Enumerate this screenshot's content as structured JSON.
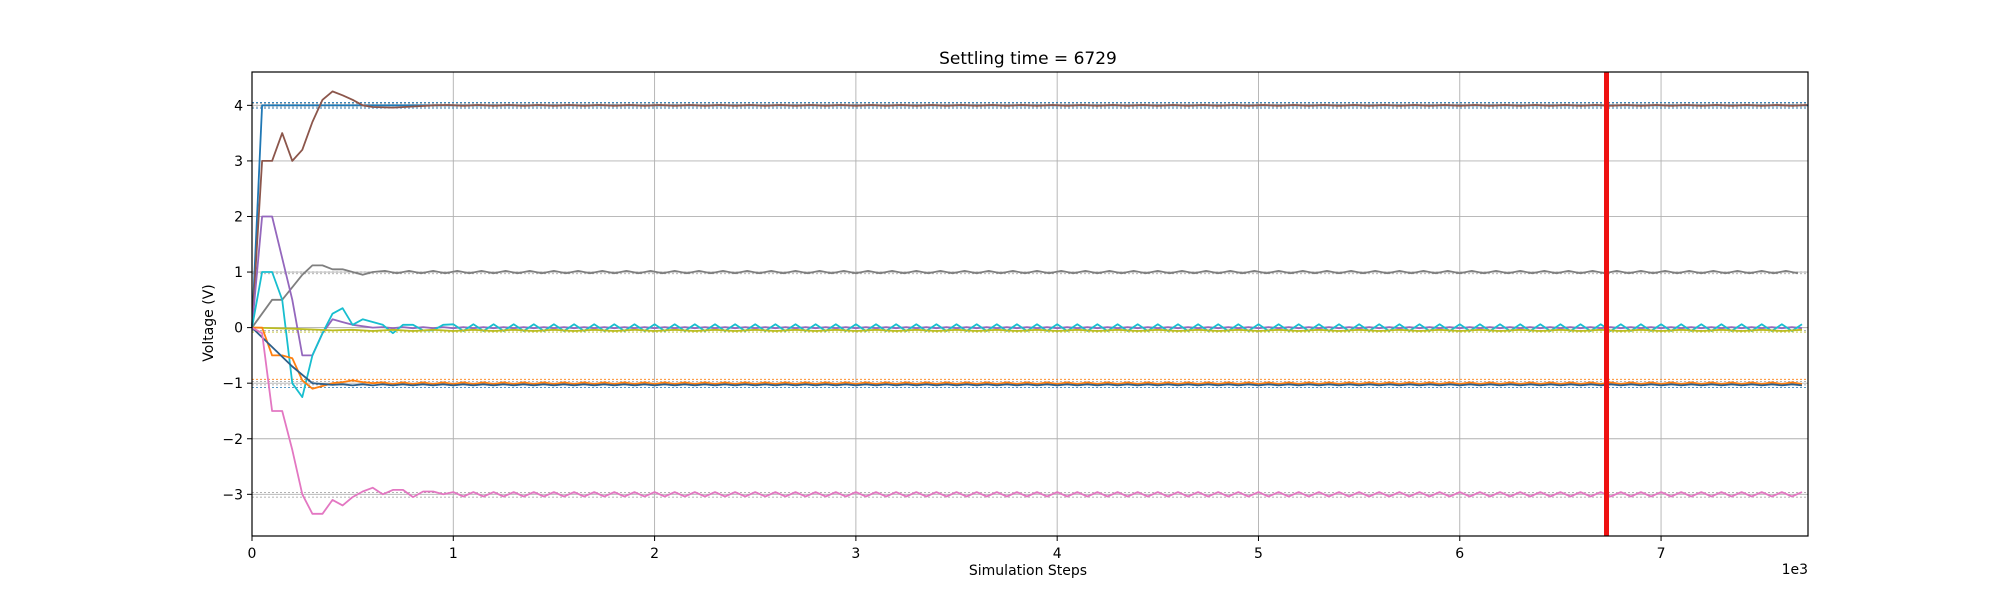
{
  "chart_data": {
    "type": "line",
    "title": "Settling time = 6729",
    "xlabel": "Simulation Steps",
    "ylabel": "Voltage (V)",
    "x_offset_label": "1e3",
    "xlim": [
      0,
      7.73
    ],
    "ylim": [
      -3.75,
      4.6
    ],
    "grid": true,
    "x_ticks": [
      0,
      1,
      2,
      3,
      4,
      5,
      6,
      7
    ],
    "y_ticks": [
      -3,
      -2,
      -1,
      0,
      1,
      2,
      3,
      4
    ],
    "x_tick_labels": [
      "0",
      "1",
      "2",
      "3",
      "4",
      "5",
      "6",
      "7"
    ],
    "y_tick_labels": [
      "−3",
      "−2",
      "−1",
      "0",
      "1",
      "2",
      "3",
      "4"
    ],
    "settling_line": {
      "x": 6.729,
      "color": "#ee1111"
    },
    "reference_lines": [
      {
        "y": 4.05,
        "color": "#1f77b4"
      },
      {
        "y": 3.95,
        "color": "#1f77b4"
      },
      {
        "y": 4.03,
        "color": "#999999"
      },
      {
        "y": 3.97,
        "color": "#999999"
      },
      {
        "y": 1.0,
        "color": "#999999"
      },
      {
        "y": 0.97,
        "color": "#999999"
      },
      {
        "y": -0.05,
        "color": "#999999"
      },
      {
        "y": -0.08,
        "color": "#bcbd22"
      },
      {
        "y": -0.97,
        "color": "#999999"
      },
      {
        "y": -1.03,
        "color": "#999999"
      },
      {
        "y": -1.08,
        "color": "#1f77b4"
      },
      {
        "y": -0.93,
        "color": "#ff7f0e"
      },
      {
        "y": -2.97,
        "color": "#999999"
      },
      {
        "y": -3.05,
        "color": "#999999"
      }
    ],
    "series": [
      {
        "color": "#1f77b4",
        "final": 4.0,
        "amp": 0.005,
        "period": 0.2,
        "points": [
          [
            0,
            0
          ],
          [
            0.05,
            4.0
          ],
          [
            7.73,
            4.0
          ]
        ]
      },
      {
        "color": "#8c564b",
        "final": 4.0,
        "amp": 0.006,
        "period": 0.15,
        "points": [
          [
            0,
            0
          ],
          [
            0.05,
            3.0
          ],
          [
            0.1,
            3.0
          ],
          [
            0.15,
            3.5
          ],
          [
            0.2,
            3.0
          ],
          [
            0.25,
            3.2
          ],
          [
            0.3,
            3.7
          ],
          [
            0.35,
            4.1
          ],
          [
            0.4,
            4.25
          ],
          [
            0.45,
            4.18
          ],
          [
            0.5,
            4.1
          ],
          [
            0.55,
            4.0
          ],
          [
            0.6,
            3.97
          ],
          [
            0.7,
            3.96
          ],
          [
            0.8,
            3.98
          ],
          [
            0.9,
            4.0
          ]
        ]
      },
      {
        "color": "#7f7f7f",
        "final": 1.0,
        "amp": 0.02,
        "period": 0.12,
        "points": [
          [
            0,
            0
          ],
          [
            0.1,
            0.5
          ],
          [
            0.15,
            0.5
          ],
          [
            0.25,
            0.95
          ],
          [
            0.3,
            1.12
          ],
          [
            0.35,
            1.12
          ],
          [
            0.4,
            1.05
          ],
          [
            0.45,
            1.05
          ],
          [
            0.5,
            1.0
          ],
          [
            0.55,
            0.95
          ],
          [
            0.6,
            1.0
          ]
        ]
      },
      {
        "color": "#9467bd",
        "final": 0.0,
        "amp": 0.01,
        "period": 0.1,
        "points": [
          [
            0,
            0
          ],
          [
            0.05,
            2.0
          ],
          [
            0.1,
            2.0
          ],
          [
            0.2,
            0.5
          ],
          [
            0.25,
            -0.5
          ],
          [
            0.3,
            -0.5
          ],
          [
            0.35,
            -0.1
          ],
          [
            0.4,
            0.15
          ],
          [
            0.45,
            0.1
          ],
          [
            0.5,
            0.05
          ],
          [
            0.6,
            0.0
          ]
        ]
      },
      {
        "color": "#17becf",
        "final": 0.0,
        "amp": 0.06,
        "period": 0.1,
        "points": [
          [
            0,
            0
          ],
          [
            0.05,
            1.0
          ],
          [
            0.1,
            1.0
          ],
          [
            0.15,
            0.5
          ],
          [
            0.2,
            -1.0
          ],
          [
            0.25,
            -1.25
          ],
          [
            0.3,
            -0.5
          ],
          [
            0.35,
            -0.1
          ],
          [
            0.4,
            0.25
          ],
          [
            0.45,
            0.35
          ],
          [
            0.5,
            0.05
          ],
          [
            0.55,
            0.15
          ],
          [
            0.65,
            0.05
          ],
          [
            0.7,
            -0.1
          ],
          [
            0.75,
            0.05
          ],
          [
            0.8,
            0.05
          ],
          [
            0.85,
            -0.05
          ],
          [
            0.9,
            -0.05
          ],
          [
            0.95,
            0.05
          ]
        ]
      },
      {
        "color": "#bcbd22",
        "final": -0.05,
        "amp": 0.01,
        "period": 0.2,
        "points": [
          [
            0,
            0
          ],
          [
            0.2,
            -0.02
          ],
          [
            0.4,
            -0.05
          ]
        ]
      },
      {
        "color": "#ff7f0e",
        "final": -1.0,
        "amp": 0.015,
        "period": 0.1,
        "points": [
          [
            0,
            0
          ],
          [
            0.05,
            0.0
          ],
          [
            0.1,
            -0.5
          ],
          [
            0.15,
            -0.5
          ],
          [
            0.2,
            -0.55
          ],
          [
            0.25,
            -0.95
          ],
          [
            0.3,
            -1.1
          ],
          [
            0.35,
            -1.05
          ],
          [
            0.4,
            -1.0
          ],
          [
            0.45,
            -0.98
          ],
          [
            0.5,
            -0.95
          ],
          [
            0.55,
            -0.98
          ],
          [
            0.6,
            -1.0
          ]
        ]
      },
      {
        "color": "#2e5f8a",
        "final": -1.03,
        "amp": 0.01,
        "period": 0.1,
        "points": [
          [
            0,
            0
          ],
          [
            0.2,
            -0.7
          ],
          [
            0.3,
            -1.0
          ],
          [
            0.4,
            -1.03
          ]
        ]
      },
      {
        "color": "#e377c2",
        "final": -3.0,
        "amp": 0.04,
        "period": 0.1,
        "points": [
          [
            0,
            0
          ],
          [
            0.05,
            -0.1
          ],
          [
            0.1,
            -1.5
          ],
          [
            0.15,
            -1.5
          ],
          [
            0.2,
            -2.2
          ],
          [
            0.25,
            -3.0
          ],
          [
            0.3,
            -3.35
          ],
          [
            0.35,
            -3.35
          ],
          [
            0.4,
            -3.1
          ],
          [
            0.45,
            -3.2
          ],
          [
            0.5,
            -3.05
          ],
          [
            0.55,
            -2.95
          ],
          [
            0.6,
            -2.88
          ],
          [
            0.65,
            -3.0
          ],
          [
            0.7,
            -2.92
          ],
          [
            0.75,
            -2.92
          ],
          [
            0.8,
            -3.05
          ],
          [
            0.85,
            -2.95
          ],
          [
            0.9,
            -2.95
          ],
          [
            0.95,
            -3.0
          ]
        ]
      }
    ]
  }
}
